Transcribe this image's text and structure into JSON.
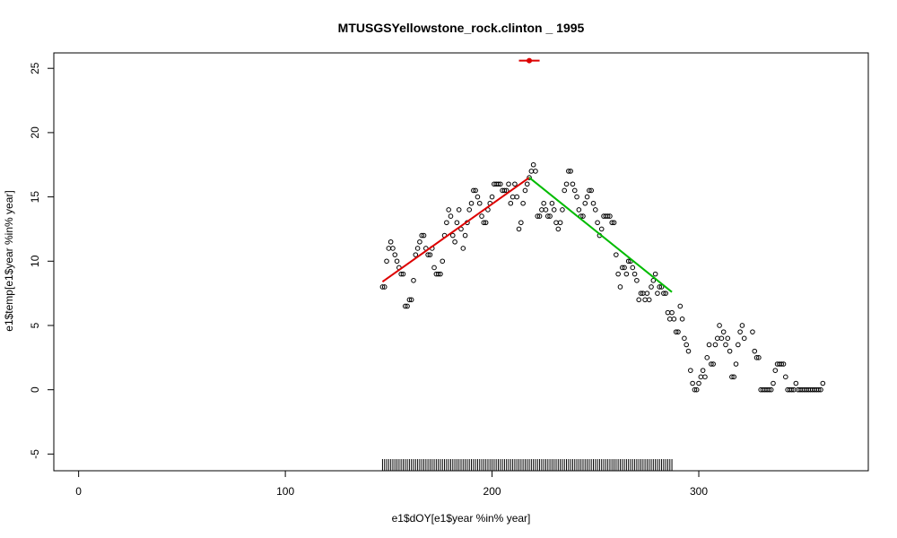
{
  "chart_data": {
    "type": "scatter",
    "title": "MTUSGSYellowstone_rock.clinton _ 1995",
    "xlabel": "e1$dOY[e1$year %in% year]",
    "ylabel": "e1$temp[e1$year %in% year]",
    "xlim": [
      -12,
      382
    ],
    "ylim": [
      -6.3,
      26.2
    ],
    "xticks": [
      0,
      100,
      200,
      300
    ],
    "yticks": [
      -5,
      0,
      5,
      10,
      15,
      20,
      25
    ],
    "grid": false,
    "legend": "none",
    "points": [
      [
        147,
        8.0
      ],
      [
        148,
        8.0
      ],
      [
        149,
        10.0
      ],
      [
        150,
        11.0
      ],
      [
        151,
        11.5
      ],
      [
        152,
        11.0
      ],
      [
        153,
        10.5
      ],
      [
        154,
        10.0
      ],
      [
        155,
        9.5
      ],
      [
        156,
        9.0
      ],
      [
        157,
        9.0
      ],
      [
        158,
        6.5
      ],
      [
        159,
        6.5
      ],
      [
        160,
        7.0
      ],
      [
        161,
        7.0
      ],
      [
        162,
        8.5
      ],
      [
        163,
        10.5
      ],
      [
        164,
        11.0
      ],
      [
        165,
        11.5
      ],
      [
        166,
        12.0
      ],
      [
        167,
        12.0
      ],
      [
        168,
        11.0
      ],
      [
        169,
        10.5
      ],
      [
        170,
        10.5
      ],
      [
        171,
        11.0
      ],
      [
        172,
        9.5
      ],
      [
        173,
        9.0
      ],
      [
        174,
        9.0
      ],
      [
        175,
        9.0
      ],
      [
        176,
        10.0
      ],
      [
        177,
        12.0
      ],
      [
        178,
        13.0
      ],
      [
        179,
        14.0
      ],
      [
        180,
        13.5
      ],
      [
        181,
        12.0
      ],
      [
        182,
        11.5
      ],
      [
        183,
        13.0
      ],
      [
        184,
        14.0
      ],
      [
        185,
        12.5
      ],
      [
        186,
        11.0
      ],
      [
        187,
        12.0
      ],
      [
        188,
        13.0
      ],
      [
        189,
        14.0
      ],
      [
        190,
        14.5
      ],
      [
        191,
        15.5
      ],
      [
        192,
        15.5
      ],
      [
        193,
        15.0
      ],
      [
        194,
        14.5
      ],
      [
        195,
        13.5
      ],
      [
        196,
        13.0
      ],
      [
        197,
        13.0
      ],
      [
        198,
        14.0
      ],
      [
        199,
        14.5
      ],
      [
        200,
        15.0
      ],
      [
        201,
        16.0
      ],
      [
        202,
        16.0
      ],
      [
        203,
        16.0
      ],
      [
        204,
        16.0
      ],
      [
        205,
        15.5
      ],
      [
        206,
        15.5
      ],
      [
        207,
        15.5
      ],
      [
        208,
        16.0
      ],
      [
        209,
        14.5
      ],
      [
        210,
        15.0
      ],
      [
        211,
        16.0
      ],
      [
        212,
        15.0
      ],
      [
        213,
        12.5
      ],
      [
        214,
        13.0
      ],
      [
        215,
        14.5
      ],
      [
        216,
        15.5
      ],
      [
        217,
        16.0
      ],
      [
        218,
        16.5
      ],
      [
        219,
        17.0
      ],
      [
        220,
        17.5
      ],
      [
        221,
        17.0
      ],
      [
        222,
        13.5
      ],
      [
        223,
        13.5
      ],
      [
        224,
        14.0
      ],
      [
        225,
        14.5
      ],
      [
        226,
        14.0
      ],
      [
        227,
        13.5
      ],
      [
        228,
        13.5
      ],
      [
        229,
        14.5
      ],
      [
        230,
        14.0
      ],
      [
        231,
        13.0
      ],
      [
        232,
        12.5
      ],
      [
        233,
        13.0
      ],
      [
        234,
        14.0
      ],
      [
        235,
        15.5
      ],
      [
        236,
        16.0
      ],
      [
        237,
        17.0
      ],
      [
        238,
        17.0
      ],
      [
        239,
        16.0
      ],
      [
        240,
        15.5
      ],
      [
        241,
        15.0
      ],
      [
        242,
        14.0
      ],
      [
        243,
        13.5
      ],
      [
        244,
        13.5
      ],
      [
        245,
        14.5
      ],
      [
        246,
        15.0
      ],
      [
        247,
        15.5
      ],
      [
        248,
        15.5
      ],
      [
        249,
        14.5
      ],
      [
        250,
        14.0
      ],
      [
        251,
        13.0
      ],
      [
        252,
        12.0
      ],
      [
        253,
        12.5
      ],
      [
        254,
        13.5
      ],
      [
        255,
        13.5
      ],
      [
        256,
        13.5
      ],
      [
        257,
        13.5
      ],
      [
        258,
        13.0
      ],
      [
        259,
        13.0
      ],
      [
        260,
        10.5
      ],
      [
        261,
        9.0
      ],
      [
        262,
        8.0
      ],
      [
        263,
        9.5
      ],
      [
        264,
        9.5
      ],
      [
        265,
        9.0
      ],
      [
        266,
        10.0
      ],
      [
        267,
        10.0
      ],
      [
        268,
        9.5
      ],
      [
        269,
        9.0
      ],
      [
        270,
        8.5
      ],
      [
        271,
        7.0
      ],
      [
        272,
        7.5
      ],
      [
        273,
        7.5
      ],
      [
        274,
        7.0
      ],
      [
        275,
        7.5
      ],
      [
        276,
        7.0
      ],
      [
        277,
        8.0
      ],
      [
        278,
        8.5
      ],
      [
        279,
        9.0
      ],
      [
        280,
        7.5
      ],
      [
        281,
        8.0
      ],
      [
        282,
        8.0
      ],
      [
        283,
        7.5
      ],
      [
        284,
        7.5
      ],
      [
        285,
        6.0
      ],
      [
        286,
        5.5
      ],
      [
        287,
        6.0
      ],
      [
        288,
        5.5
      ],
      [
        289,
        4.5
      ],
      [
        290,
        4.5
      ],
      [
        291,
        6.5
      ],
      [
        292,
        5.5
      ],
      [
        293,
        4.0
      ],
      [
        294,
        3.5
      ],
      [
        295,
        3.0
      ],
      [
        296,
        1.5
      ],
      [
        297,
        0.5
      ],
      [
        298,
        0.0
      ],
      [
        299,
        0.0
      ],
      [
        300,
        0.5
      ],
      [
        301,
        1.0
      ],
      [
        302,
        1.5
      ],
      [
        303,
        1.0
      ],
      [
        304,
        2.5
      ],
      [
        305,
        3.5
      ],
      [
        306,
        2.0
      ],
      [
        307,
        2.0
      ],
      [
        308,
        3.5
      ],
      [
        309,
        4.0
      ],
      [
        310,
        5.0
      ],
      [
        311,
        4.0
      ],
      [
        312,
        4.5
      ],
      [
        313,
        3.5
      ],
      [
        314,
        4.0
      ],
      [
        315,
        3.0
      ],
      [
        316,
        1.0
      ],
      [
        317,
        1.0
      ],
      [
        318,
        2.0
      ],
      [
        319,
        3.5
      ],
      [
        320,
        4.5
      ],
      [
        321,
        5.0
      ],
      [
        322,
        4.0
      ],
      [
        326,
        4.5
      ],
      [
        327,
        3.0
      ],
      [
        328,
        2.5
      ],
      [
        329,
        2.5
      ],
      [
        330,
        0.0
      ],
      [
        331,
        0.0
      ],
      [
        332,
        0.0
      ],
      [
        333,
        0.0
      ],
      [
        334,
        0.0
      ],
      [
        335,
        0.0
      ],
      [
        336,
        0.5
      ],
      [
        337,
        1.5
      ],
      [
        338,
        2.0
      ],
      [
        339,
        2.0
      ],
      [
        340,
        2.0
      ],
      [
        341,
        2.0
      ],
      [
        342,
        1.0
      ],
      [
        343,
        0.0
      ],
      [
        344,
        0.0
      ],
      [
        345,
        0.0
      ],
      [
        346,
        0.0
      ],
      [
        347,
        0.5
      ],
      [
        348,
        0.0
      ],
      [
        349,
        0.0
      ],
      [
        350,
        0.0
      ],
      [
        351,
        0.0
      ],
      [
        352,
        0.0
      ],
      [
        353,
        0.0
      ],
      [
        354,
        0.0
      ],
      [
        355,
        0.0
      ],
      [
        356,
        0.0
      ],
      [
        357,
        0.0
      ],
      [
        358,
        0.0
      ],
      [
        359,
        0.0
      ],
      [
        360,
        0.5
      ]
    ],
    "fit_lines": [
      {
        "color": "#dd0000",
        "x": [
          147,
          218
        ],
        "y": [
          8.4,
          16.5
        ]
      },
      {
        "color": "#00bb00",
        "x": [
          218,
          287
        ],
        "y": [
          16.5,
          7.6
        ]
      }
    ],
    "peak_marker": {
      "color": "#dd0000",
      "x": 218,
      "y": 25.6,
      "x_range": [
        213,
        223
      ]
    },
    "rug": {
      "x_start": 147,
      "x_end": 287,
      "step": 1
    }
  }
}
